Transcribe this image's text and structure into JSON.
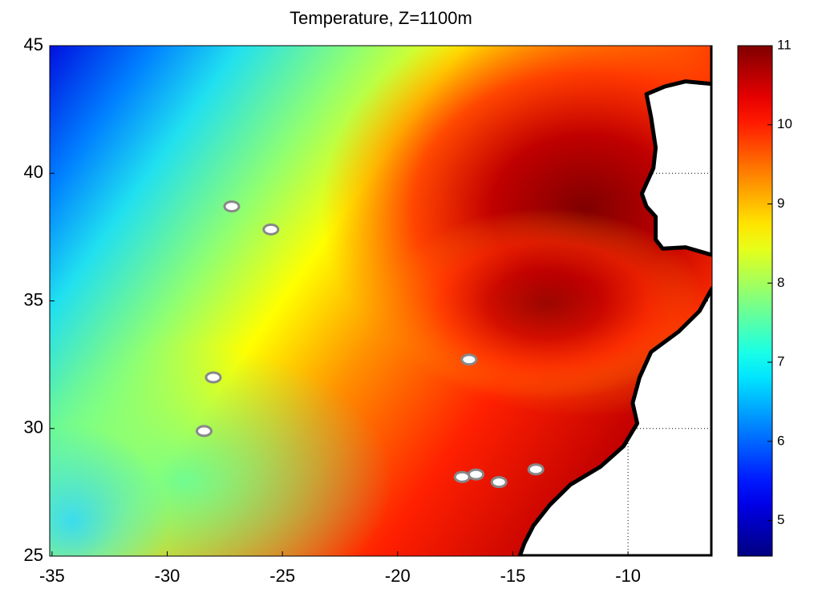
{
  "chart_data": {
    "type": "heatmap",
    "title": "Temperature, Z=1100m",
    "xlim": [
      -35.1,
      -6.35
    ],
    "ylim": [
      25,
      45
    ],
    "xticks": [
      -35,
      -30,
      -25,
      -20,
      -15,
      -10
    ],
    "yticks": [
      25,
      30,
      35,
      40,
      45
    ],
    "clim": [
      4.55,
      11
    ],
    "cticks": [
      5,
      6,
      7,
      8,
      9,
      10,
      11
    ],
    "colormap": "jet",
    "grid": true
  }
}
